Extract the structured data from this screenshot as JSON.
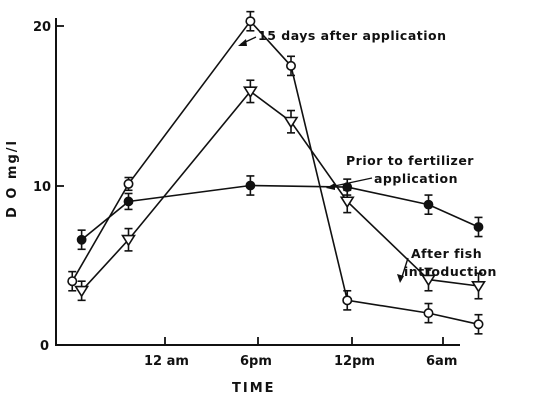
{
  "chart_data": {
    "type": "line",
    "title": "",
    "xlabel": "TIME",
    "ylabel": "D O  mg/l",
    "x_ticks": [
      "12 am",
      "6pm",
      "12pm",
      "6am"
    ],
    "y_ticks": [
      "0",
      "10",
      "20"
    ],
    "ylim": [
      0,
      20.5
    ],
    "grid": false,
    "series": [
      {
        "name": "15 days after application",
        "marker": "open-circle",
        "points": [
          {
            "x": 0.1,
            "y": 4.0,
            "err": 0.6
          },
          {
            "x": 1.0,
            "y": 10.1,
            "err": 0.4
          },
          {
            "x": 2.95,
            "y": 20.3,
            "err": 0.6
          },
          {
            "x": 3.6,
            "y": 17.5,
            "err": 0.6
          },
          {
            "x": 4.5,
            "y": 2.8,
            "err": 0.6
          },
          {
            "x": 5.8,
            "y": 2.0,
            "err": 0.6
          },
          {
            "x": 6.6,
            "y": 1.3,
            "err": 0.6
          }
        ]
      },
      {
        "name": "Prior to fertilizer application",
        "marker": "filled-circle",
        "points": [
          {
            "x": 0.25,
            "y": 6.6,
            "err": 0.6
          },
          {
            "x": 1.0,
            "y": 9.0,
            "err": 0.5
          },
          {
            "x": 2.95,
            "y": 10.0,
            "err": 0.6
          },
          {
            "x": 4.5,
            "y": 9.9,
            "err": 0.5
          },
          {
            "x": 5.8,
            "y": 8.8,
            "err": 0.6
          },
          {
            "x": 6.6,
            "y": 7.4,
            "err": 0.6
          }
        ]
      },
      {
        "name": "After fish introduction",
        "marker": "open-triangle",
        "points": [
          {
            "x": 0.25,
            "y": 3.4,
            "err": 0.6
          },
          {
            "x": 1.0,
            "y": 6.6,
            "err": 0.7
          },
          {
            "x": 2.95,
            "y": 15.9,
            "err": 0.7
          },
          {
            "x": 3.6,
            "y": 14.0,
            "err": 0.7
          },
          {
            "x": 4.5,
            "y": 9.0,
            "err": 0.7
          },
          {
            "x": 5.8,
            "y": 4.1,
            "err": 0.7
          },
          {
            "x": 6.6,
            "y": 3.7,
            "err": 0.8
          }
        ]
      }
    ],
    "annotations": {
      "after_application": "15 days after application",
      "prior_line1": "Prior to fertilizer",
      "prior_line2": "application",
      "fish_line1": "After fish",
      "fish_line2": "introduction"
    }
  }
}
